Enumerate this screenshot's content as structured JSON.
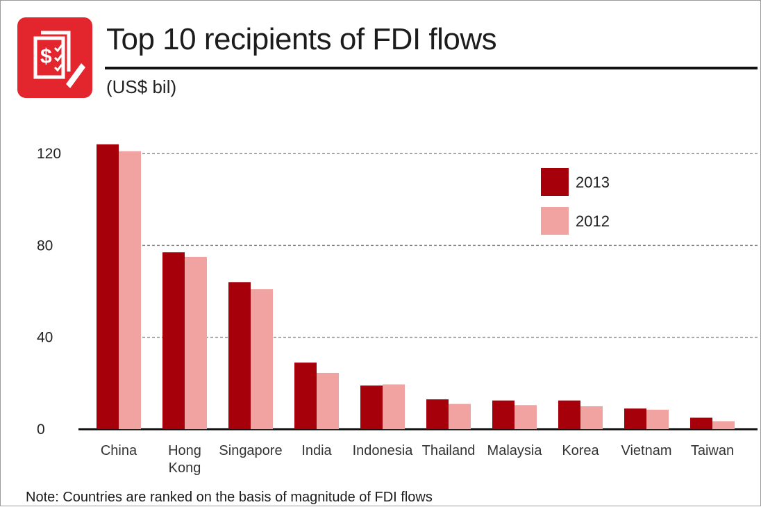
{
  "title": "Top 10 recipients of FDI flows",
  "subtitle": "(US$ bil)",
  "note": "Note: Countries are ranked on the basis of magnitude of FDI flows",
  "colors": {
    "series_2013": "#a6000a",
    "series_2012": "#f1a3a1",
    "logo": "#e3262e",
    "gridline": "#8a8a8a"
  },
  "icons": {
    "logo": "money-document-icon"
  },
  "chart_data": {
    "type": "bar",
    "title": "Top 10 recipients of FDI flows",
    "subtitle": "(US$ bil)",
    "categories": [
      "China",
      "Hong Kong",
      "Singapore",
      "India",
      "Indonesia",
      "Thailand",
      "Malaysia",
      "Korea",
      "Vietnam",
      "Taiwan"
    ],
    "series": [
      {
        "name": "2013",
        "values": [
          124,
          77,
          64,
          29,
          19,
          13,
          12.5,
          12.5,
          9,
          5
        ]
      },
      {
        "name": "2012",
        "values": [
          121,
          75,
          61,
          24.5,
          19.5,
          11,
          10.5,
          10,
          8.5,
          3.5
        ]
      }
    ],
    "ylim": [
      0,
      120
    ],
    "yticks": [
      0,
      40,
      80,
      120
    ],
    "grid": true,
    "legend": "top-right",
    "xlabel": "",
    "ylabel": ""
  }
}
